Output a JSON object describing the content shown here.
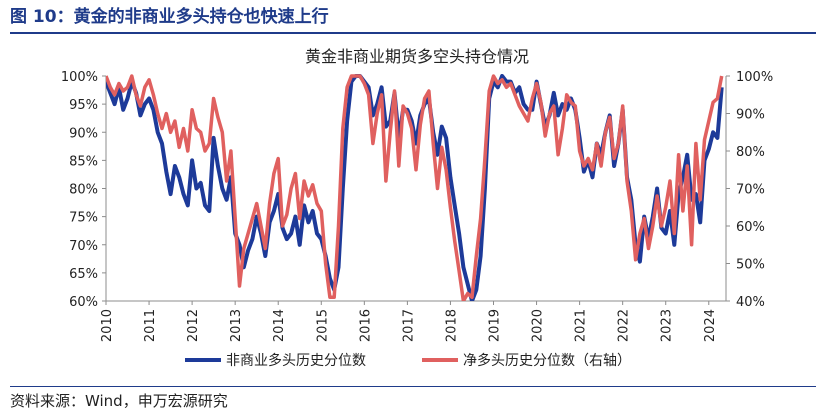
{
  "figure": {
    "title": "图 10：黄金的非商业多头持仓也快速上行",
    "source": "资料来源：Wind，申万宏源研究"
  },
  "colors": {
    "heading": "#1f3b8a",
    "series_left": "#1d3a99",
    "series_right": "#e0605f",
    "axis": "#8c8c8c"
  },
  "chart_data": {
    "type": "line",
    "title": "黄金非商业期货多空头持仓情况",
    "xlabel": "",
    "ylabel": "",
    "x_ticks": [
      "2010",
      "2011",
      "2012",
      "2013",
      "2014",
      "2015",
      "2016",
      "2017",
      "2018",
      "2019",
      "2020",
      "2021",
      "2022",
      "2023",
      "2024"
    ],
    "y_left": {
      "range": [
        60,
        100
      ],
      "ticks": [
        "60%",
        "65%",
        "70%",
        "75%",
        "80%",
        "85%",
        "90%",
        "95%",
        "100%"
      ]
    },
    "y_right": {
      "range": [
        40,
        100
      ],
      "ticks": [
        "40%",
        "50%",
        "60%",
        "70%",
        "80%",
        "90%",
        "100%"
      ]
    },
    "grid": false,
    "legend_position": "bottom",
    "legend": [
      "非商业多头历史分位数",
      "净多头历史分位数（右轴）"
    ],
    "series": [
      {
        "name": "非商业多头历史分位数",
        "axis": "left",
        "x": [
          2010.0,
          2010.1,
          2010.2,
          2010.3,
          2010.4,
          2010.5,
          2010.6,
          2010.7,
          2010.8,
          2010.9,
          2011.0,
          2011.1,
          2011.2,
          2011.3,
          2011.4,
          2011.5,
          2011.6,
          2011.7,
          2011.8,
          2011.9,
          2012.0,
          2012.1,
          2012.2,
          2012.3,
          2012.4,
          2012.5,
          2012.6,
          2012.7,
          2012.8,
          2012.9,
          2013.0,
          2013.1,
          2013.2,
          2013.3,
          2013.4,
          2013.5,
          2013.6,
          2013.7,
          2013.8,
          2013.9,
          2014.0,
          2014.1,
          2014.2,
          2014.3,
          2014.4,
          2014.5,
          2014.6,
          2014.7,
          2014.8,
          2014.9,
          2015.0,
          2015.1,
          2015.2,
          2015.3,
          2015.4,
          2015.5,
          2015.6,
          2015.7,
          2015.8,
          2015.9,
          2016.0,
          2016.1,
          2016.2,
          2016.3,
          2016.4,
          2016.5,
          2016.6,
          2016.7,
          2016.8,
          2016.9,
          2017.0,
          2017.1,
          2017.2,
          2017.3,
          2017.4,
          2017.5,
          2017.6,
          2017.7,
          2017.8,
          2017.9,
          2018.0,
          2018.1,
          2018.2,
          2018.3,
          2018.4,
          2018.5,
          2018.6,
          2018.7,
          2018.8,
          2018.9,
          2019.0,
          2019.1,
          2019.2,
          2019.3,
          2019.4,
          2019.5,
          2019.6,
          2019.7,
          2019.8,
          2019.9,
          2020.0,
          2020.1,
          2020.2,
          2020.3,
          2020.4,
          2020.5,
          2020.6,
          2020.7,
          2020.8,
          2020.9,
          2021.0,
          2021.1,
          2021.2,
          2021.3,
          2021.4,
          2021.5,
          2021.6,
          2021.7,
          2021.8,
          2021.9,
          2022.0,
          2022.1,
          2022.2,
          2022.3,
          2022.4,
          2022.5,
          2022.6,
          2022.7,
          2022.8,
          2022.9,
          2023.0,
          2023.1,
          2023.2,
          2023.3,
          2023.4,
          2023.5,
          2023.6,
          2023.7,
          2023.8,
          2023.9,
          2024.0,
          2024.1,
          2024.2,
          2024.3
        ],
        "values": [
          99,
          97,
          95,
          98,
          94,
          96,
          99,
          97,
          93,
          95,
          96,
          94,
          90,
          88,
          83,
          79,
          84,
          82,
          79,
          77,
          85,
          80,
          81,
          77,
          76,
          89,
          84,
          80,
          78,
          82,
          72,
          70,
          66,
          69,
          71,
          75,
          72,
          68,
          74,
          76,
          79,
          73,
          71,
          72,
          75,
          70,
          77,
          74,
          76,
          72,
          71,
          68,
          64,
          62,
          66,
          80,
          92,
          99,
          100,
          100,
          99,
          98,
          93,
          95,
          98,
          91,
          92,
          97,
          89,
          94,
          94,
          92,
          88,
          93,
          95,
          96,
          90,
          86,
          91,
          89,
          82,
          77,
          72,
          66,
          63,
          60,
          62,
          68,
          80,
          96,
          99,
          98,
          100,
          99,
          99,
          97,
          98,
          95,
          94,
          94,
          99,
          95,
          91,
          93,
          97,
          93,
          95,
          94,
          96,
          94,
          89,
          83,
          85,
          82,
          88,
          86,
          90,
          93,
          84,
          88,
          94,
          82,
          78,
          70,
          67,
          75,
          71,
          75,
          80,
          73,
          72,
          76,
          70,
          79,
          82,
          86,
          78,
          79,
          74,
          85,
          87,
          90,
          89,
          98
        ]
      },
      {
        "name": "净多头历史分位数（右轴）",
        "axis": "right",
        "x": [
          2010.0,
          2010.1,
          2010.2,
          2010.3,
          2010.4,
          2010.5,
          2010.6,
          2010.7,
          2010.8,
          2010.9,
          2011.0,
          2011.1,
          2011.2,
          2011.3,
          2011.4,
          2011.5,
          2011.6,
          2011.7,
          2011.8,
          2011.9,
          2012.0,
          2012.1,
          2012.2,
          2012.3,
          2012.4,
          2012.5,
          2012.6,
          2012.7,
          2012.8,
          2012.9,
          2013.0,
          2013.1,
          2013.2,
          2013.3,
          2013.4,
          2013.5,
          2013.6,
          2013.7,
          2013.8,
          2013.9,
          2014.0,
          2014.1,
          2014.2,
          2014.3,
          2014.4,
          2014.5,
          2014.6,
          2014.7,
          2014.8,
          2014.9,
          2015.0,
          2015.1,
          2015.2,
          2015.3,
          2015.4,
          2015.5,
          2015.6,
          2015.7,
          2015.8,
          2015.9,
          2016.0,
          2016.1,
          2016.2,
          2016.3,
          2016.4,
          2016.5,
          2016.6,
          2016.7,
          2016.8,
          2016.9,
          2017.0,
          2017.1,
          2017.2,
          2017.3,
          2017.4,
          2017.5,
          2017.6,
          2017.7,
          2017.8,
          2017.9,
          2018.0,
          2018.1,
          2018.2,
          2018.3,
          2018.4,
          2018.5,
          2018.6,
          2018.7,
          2018.8,
          2018.9,
          2019.0,
          2019.1,
          2019.2,
          2019.3,
          2019.4,
          2019.5,
          2019.6,
          2019.7,
          2019.8,
          2019.9,
          2020.0,
          2020.1,
          2020.2,
          2020.3,
          2020.4,
          2020.5,
          2020.6,
          2020.7,
          2020.8,
          2020.9,
          2021.0,
          2021.1,
          2021.2,
          2021.3,
          2021.4,
          2021.5,
          2021.6,
          2021.7,
          2021.8,
          2021.9,
          2022.0,
          2022.1,
          2022.2,
          2022.3,
          2022.4,
          2022.5,
          2022.6,
          2022.7,
          2022.8,
          2022.9,
          2023.0,
          2023.1,
          2023.2,
          2023.3,
          2023.4,
          2023.5,
          2023.6,
          2023.7,
          2023.8,
          2023.9,
          2024.0,
          2024.1,
          2024.2,
          2024.3
        ],
        "values": [
          100,
          97,
          95,
          98,
          96,
          97,
          100,
          95,
          92,
          97,
          99,
          95,
          90,
          86,
          90,
          85,
          88,
          81,
          86,
          80,
          91,
          86,
          85,
          80,
          82,
          94,
          89,
          85,
          72,
          80,
          62,
          44,
          54,
          58,
          62,
          66,
          60,
          54,
          66,
          74,
          78,
          60,
          63,
          70,
          74,
          62,
          72,
          68,
          71,
          66,
          64,
          50,
          41,
          41,
          60,
          86,
          97,
          100,
          100,
          100,
          98,
          95,
          82,
          90,
          95,
          72,
          85,
          96,
          76,
          92,
          90,
          86,
          75,
          87,
          94,
          96,
          82,
          70,
          81,
          75,
          65,
          56,
          48,
          40,
          42,
          41,
          52,
          62,
          78,
          96,
          100,
          98,
          99,
          97,
          98,
          95,
          92,
          90,
          88,
          94,
          98,
          93,
          84,
          90,
          92,
          79,
          86,
          95,
          93,
          92,
          80,
          76,
          78,
          75,
          82,
          76,
          85,
          89,
          78,
          82,
          92,
          72,
          64,
          51,
          58,
          62,
          54,
          60,
          68,
          60,
          65,
          72,
          58,
          79,
          64,
          76,
          55,
          82,
          67,
          83,
          88,
          93,
          94,
          100
        ]
      }
    ]
  }
}
